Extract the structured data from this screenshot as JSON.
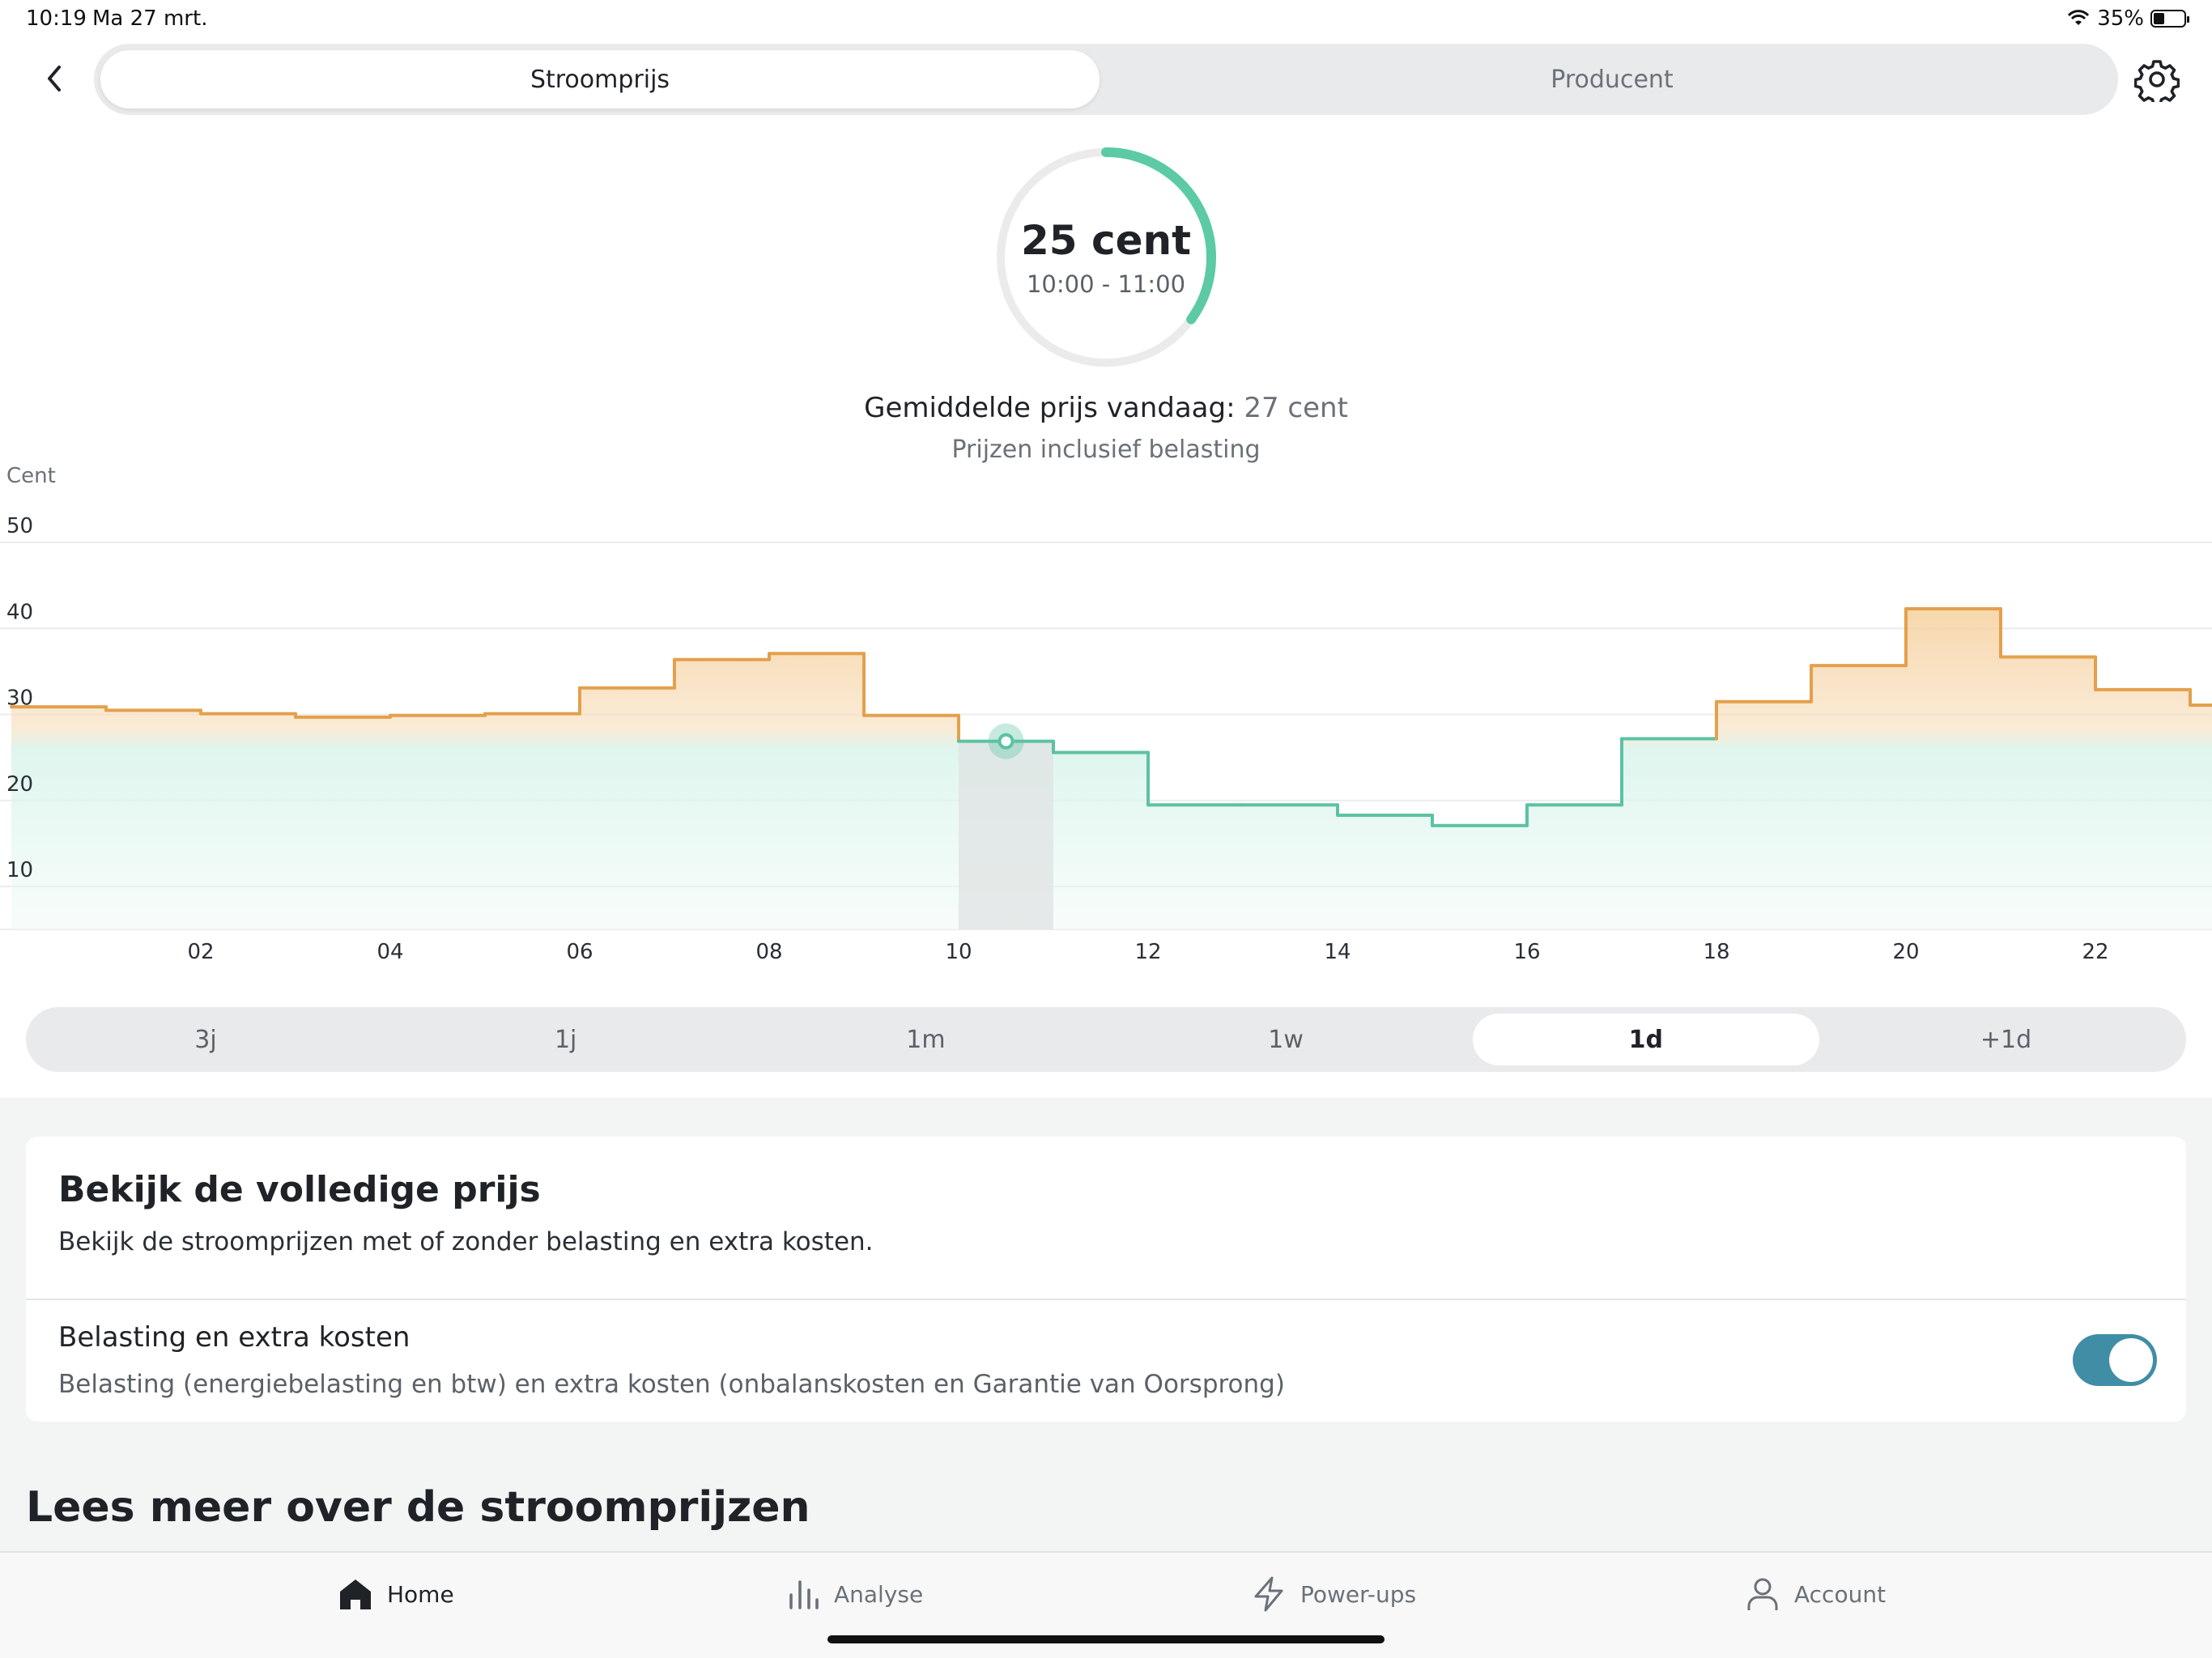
{
  "status_bar": {
    "time": "10:19",
    "date": "Ma 27 mrt.",
    "battery": "35%",
    "battery_level": 0.35
  },
  "top_tabs": [
    {
      "label": "Stroomprijs",
      "active": true
    },
    {
      "label": "Producent",
      "active": false
    }
  ],
  "icons": {
    "back": "chevron-left-icon",
    "settings": "gear-icon",
    "wifi": "wifi-icon",
    "battery": "battery-icon"
  },
  "gauge": {
    "value_label": "25 cent",
    "time_range": "10:00 - 11:00",
    "progress": 0.35,
    "color": "#5ccaa5"
  },
  "average": {
    "label": "Gemiddelde prijs vandaag:",
    "value": "27 cent"
  },
  "tax_note": "Prijzen inclusief belasting",
  "chart_data": {
    "type": "line",
    "style": "step",
    "ylabel": "Cent",
    "ylim": [
      10,
      50
    ],
    "yticks": [
      "50",
      "40",
      "30",
      "20",
      "10"
    ],
    "xticks": [
      "02",
      "04",
      "06",
      "08",
      "10",
      "12",
      "14",
      "16",
      "18",
      "20",
      "22"
    ],
    "x_hours": [
      0,
      1,
      2,
      3,
      4,
      5,
      6,
      7,
      8,
      9,
      10,
      11,
      12,
      13,
      14,
      15,
      16,
      17,
      18,
      19,
      20,
      21,
      22,
      23
    ],
    "values": [
      29.0,
      28.6,
      28.2,
      27.8,
      28.0,
      28.2,
      31.2,
      34.5,
      35.2,
      28.0,
      25.0,
      23.7,
      17.6,
      17.6,
      16.4,
      15.2,
      17.6,
      25.3,
      29.6,
      33.8,
      40.4,
      34.8,
      31.0,
      29.2
    ],
    "selected_hour": 10,
    "threshold": 27,
    "grid": true,
    "colors": {
      "above": "#e4a04c",
      "below": "#5cc2a2",
      "above_fill": "#f7d9b0",
      "below_fill": "#d6f3ea"
    }
  },
  "range_tabs": [
    {
      "label": "3j",
      "active": false
    },
    {
      "label": "1j",
      "active": false
    },
    {
      "label": "1m",
      "active": false
    },
    {
      "label": "1w",
      "active": false
    },
    {
      "label": "1d",
      "active": true
    },
    {
      "label": "+1d",
      "active": false
    }
  ],
  "price_card": {
    "title": "Bekijk de volledige prijs",
    "description": "Bekijk de stroomprijzen met of zonder belasting en extra kosten.",
    "toggle_title": "Belasting en extra kosten",
    "toggle_description": "Belasting (energiebelasting en btw) en extra kosten (onbalanskosten en Garantie van Oorsprong)",
    "toggle_on": true,
    "toggle_color": "#3f8ea6"
  },
  "read_more": "Lees meer over de stroomprijzen",
  "tab_bar": [
    {
      "label": "Home",
      "icon": "home-icon",
      "active": true
    },
    {
      "label": "Analyse",
      "icon": "bar-chart-icon",
      "active": false
    },
    {
      "label": "Power-ups",
      "icon": "lightning-icon",
      "active": false
    },
    {
      "label": "Account",
      "icon": "user-icon",
      "active": false
    }
  ]
}
